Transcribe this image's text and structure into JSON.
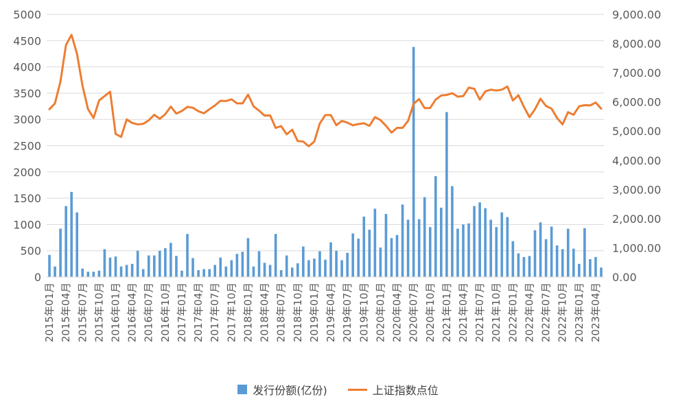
{
  "colors": {
    "bar": "#5B9BD5",
    "line": "#ED7D31",
    "grid": "#D9D9D9",
    "text": "#595959"
  },
  "chart_data": {
    "type": "bar+line",
    "title": "",
    "xlabel": "",
    "left_axis": {
      "ylim": [
        0,
        5000
      ],
      "ticks": [
        "0",
        "500",
        "1000",
        "1500",
        "2000",
        "2500",
        "3000",
        "3500",
        "4000",
        "4500",
        "5000"
      ]
    },
    "right_axis": {
      "ylim": [
        0,
        9000
      ],
      "ticks": [
        "0.00",
        "1,000.00",
        "2,000.00",
        "3,000.00",
        "4,000.00",
        "5,000.00",
        "6,000.00",
        "7,000.00",
        "8,000.00",
        "9,000.00"
      ]
    },
    "grid": true,
    "legend_position": "bottom",
    "x_tick_labels": [
      "2015年01月",
      "2015年04月",
      "2015年07月",
      "2015年10月",
      "2016年01月",
      "2016年04月",
      "2016年07月",
      "2016年10月",
      "2017年01月",
      "2017年04月",
      "2017年07月",
      "2017年10月",
      "2018年01月",
      "2018年04月",
      "2018年07月",
      "2018年10月",
      "2019年01月",
      "2019年04月",
      "2019年07月",
      "2019年10月",
      "2020年01月",
      "2020年04月",
      "2020年07月",
      "2020年10月",
      "2021年01月",
      "2021年04月",
      "2021年07月",
      "2021年10月",
      "2022年01月",
      "2022年04月",
      "2022年07月",
      "2022年10月",
      "2023年01月",
      "2023年04月"
    ],
    "x_tick_every": 3,
    "series": [
      {
        "name": "发行份额(亿份)",
        "type": "bar",
        "axis": "left",
        "values": [
          420,
          200,
          920,
          1350,
          1620,
          1230,
          160,
          100,
          100,
          120,
          530,
          370,
          390,
          200,
          230,
          250,
          500,
          150,
          410,
          410,
          500,
          550,
          650,
          400,
          120,
          820,
          360,
          130,
          150,
          150,
          230,
          370,
          200,
          320,
          440,
          480,
          740,
          200,
          490,
          270,
          230,
          820,
          130,
          410,
          180,
          260,
          580,
          320,
          350,
          490,
          330,
          660,
          500,
          320,
          460,
          830,
          730,
          1150,
          900,
          1300,
          560,
          1200,
          740,
          800,
          1380,
          1090,
          4380,
          1100,
          1520,
          950,
          1920,
          1320,
          3140,
          1730,
          920,
          1000,
          1020,
          1350,
          1420,
          1310,
          1090,
          950,
          1230,
          1140,
          680,
          450,
          380,
          400,
          890,
          1040,
          720,
          960,
          600,
          530,
          920,
          540,
          250,
          930,
          340,
          380,
          180
        ]
      },
      {
        "name": "上证指数点位",
        "type": "line",
        "axis": "right",
        "values": [
          5750,
          5950,
          6700,
          7950,
          8300,
          7650,
          6550,
          5750,
          5450,
          6050,
          6200,
          6350,
          4900,
          4800,
          5400,
          5280,
          5230,
          5250,
          5370,
          5560,
          5420,
          5580,
          5840,
          5600,
          5690,
          5830,
          5800,
          5680,
          5610,
          5750,
          5880,
          6040,
          6030,
          6090,
          5950,
          5950,
          6250,
          5850,
          5700,
          5530,
          5540,
          5110,
          5170,
          4890,
          5050,
          4660,
          4640,
          4480,
          4640,
          5260,
          5550,
          5550,
          5200,
          5350,
          5290,
          5200,
          5240,
          5270,
          5180,
          5480,
          5380,
          5180,
          4950,
          5110,
          5110,
          5350,
          5930,
          6100,
          5790,
          5790,
          6080,
          6220,
          6240,
          6300,
          6180,
          6200,
          6490,
          6450,
          6080,
          6360,
          6420,
          6390,
          6420,
          6530,
          6050,
          6230,
          5830,
          5480,
          5750,
          6110,
          5860,
          5770,
          5450,
          5230,
          5650,
          5560,
          5850,
          5890,
          5880,
          5980,
          5770
        ]
      }
    ]
  }
}
